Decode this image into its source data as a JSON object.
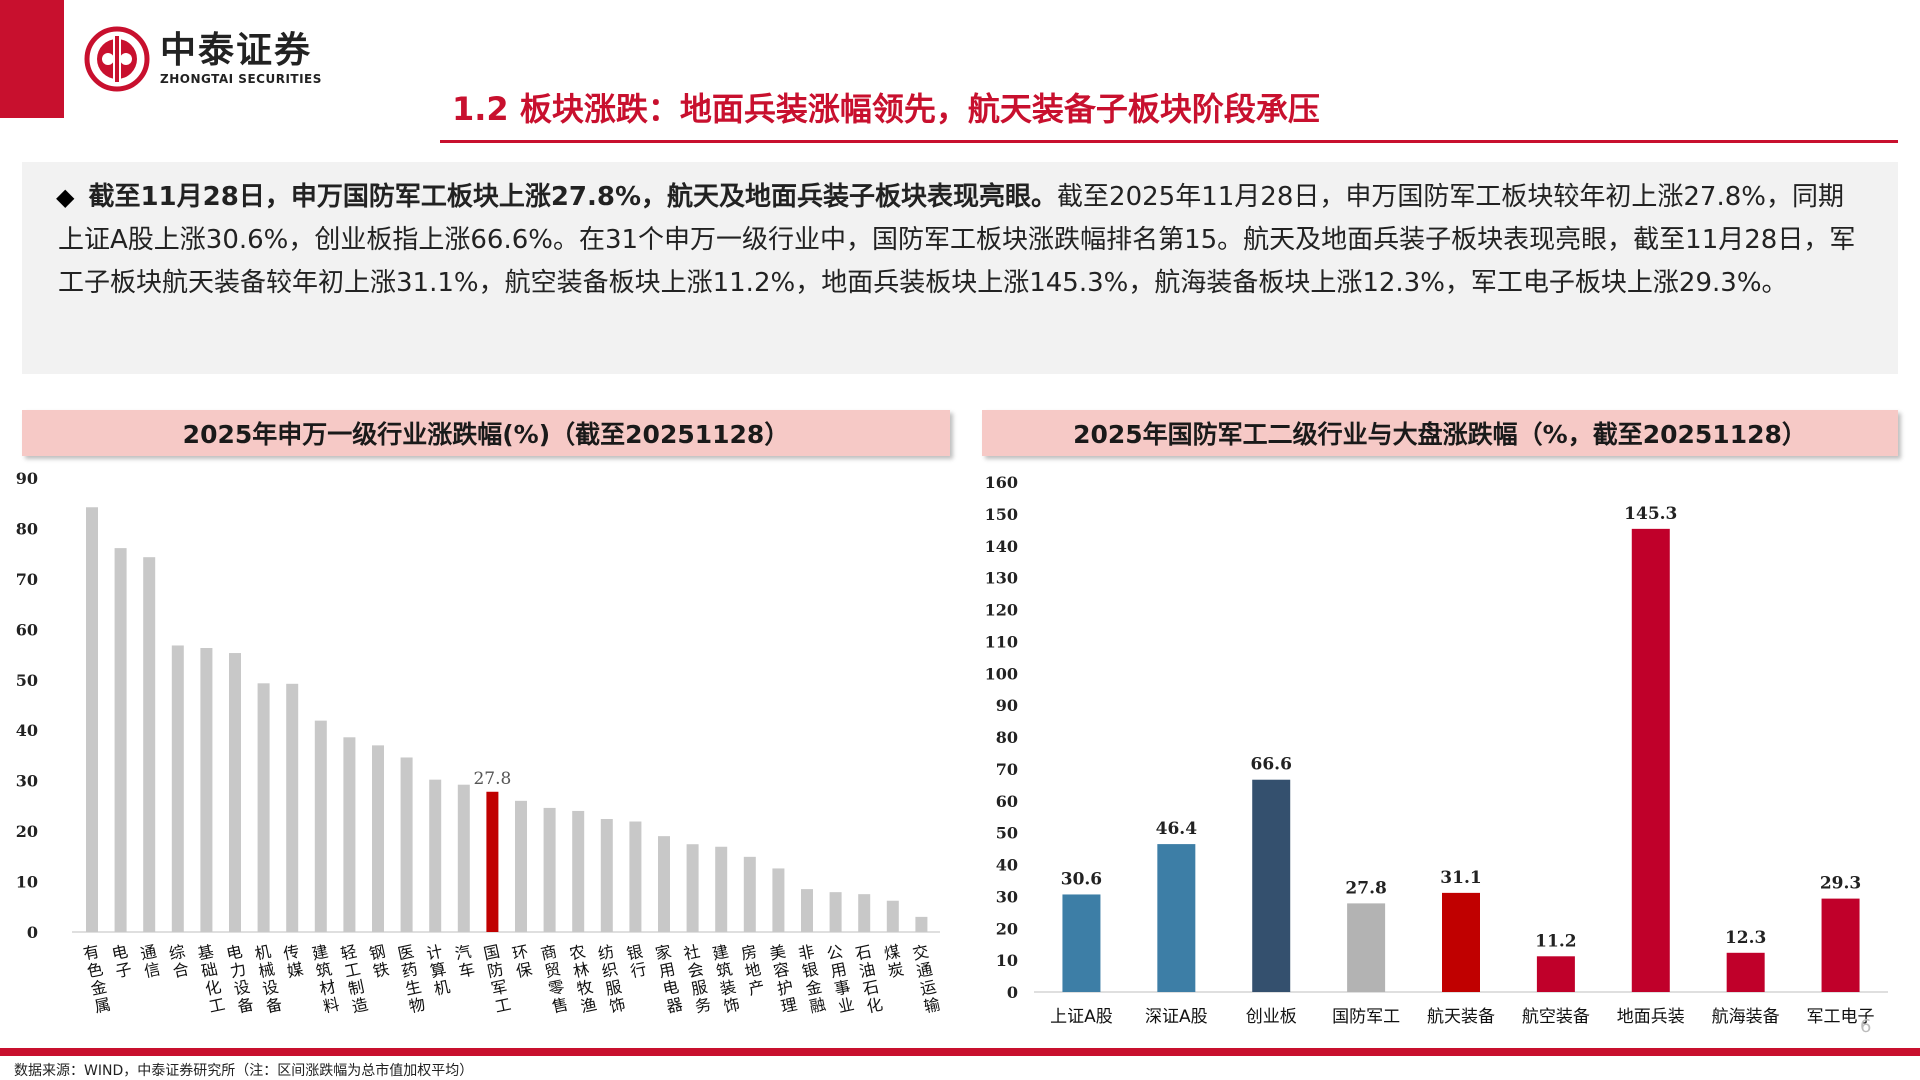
{
  "header": {
    "logo_cn": "中泰证券",
    "logo_en": "ZHONGTAI SECURITIES",
    "title": "1.2 板块涨跌：地面兵装涨幅领先，航天装备子板块阶段承压",
    "accent_color": "#c8102e"
  },
  "summary": {
    "bold_text": "截至11月28日，申万国防军工板块上涨27.8%，航天及地面兵装子板块表现亮眼。",
    "body_text": "截至2025年11月28日，申万国防军工板块较年初上涨27.8%，同期上证A股上涨30.6%，创业板指上涨66.6%。在31个申万一级行业中，国防军工板块涨跌幅排名第15。航天及地面兵装子板块表现亮眼，截至11月28日，军工子板块航天装备较年初上涨31.1%，航空装备板块上涨11.2%，地面兵装板块上涨145.3%，航海装备板块上涨12.3%，军工电子板块上涨29.3%。"
  },
  "footer": {
    "source": "数据来源：WIND，中泰证券研究所（注：区间涨跌幅为总市值加权平均）",
    "page_number": "6"
  },
  "chart_data": [
    {
      "type": "bar",
      "title": "2025年申万一级行业涨跌幅(%)（截至20251128）",
      "categories": [
        "有色金属",
        "电子",
        "通信",
        "综合",
        "基础化工",
        "电力设备",
        "机械设备",
        "传媒",
        "建筑材料",
        "轻工制造",
        "钢铁",
        "医药生物",
        "计算机",
        "汽车",
        "国防军工",
        "环保",
        "商贸零售",
        "农林牧渔",
        "纺织服饰",
        "银行",
        "家用电器",
        "社会服务",
        "建筑装饰",
        "房地产",
        "美容护理",
        "非银金融",
        "公用事业",
        "石油石化",
        "煤炭",
        "交通运输"
      ],
      "values": [
        84.2,
        76.1,
        74.3,
        56.8,
        56.3,
        55.3,
        49.3,
        49.2,
        41.9,
        38.6,
        37.0,
        34.6,
        30.2,
        29.2,
        27.8,
        26.0,
        24.6,
        24.0,
        22.4,
        21.9,
        19.0,
        17.4,
        16.9,
        14.9,
        12.6,
        8.5,
        7.9,
        7.5,
        6.2,
        3.0
      ],
      "highlight": "国防军工",
      "highlight_label": "27.8",
      "ylim": [
        0,
        90
      ],
      "yticks": [
        0,
        10,
        20,
        30,
        40,
        50,
        60,
        70,
        80,
        90
      ],
      "colors": {
        "default": "#c8c8c8",
        "highlight": "#c00000"
      },
      "grid": false
    },
    {
      "type": "bar",
      "title": "2025年国防军工二级行业与大盘涨跌幅（%，截至20251128）",
      "categories": [
        "上证A股",
        "深证A股",
        "创业板",
        "国防军工",
        "航天装备",
        "航空装备",
        "地面兵装",
        "航海装备",
        "军工电子"
      ],
      "values": [
        30.6,
        46.4,
        66.6,
        27.8,
        31.1,
        11.2,
        145.3,
        12.3,
        29.3
      ],
      "labels": [
        "30.6",
        "46.4",
        "66.6",
        "27.8",
        "31.1",
        "11.2",
        "145.3",
        "12.3",
        "29.3"
      ],
      "colors": [
        "#3d7ea6",
        "#3d7ea6",
        "#34506e",
        "#b3b3b3",
        "#c00000",
        "#c0002a",
        "#c0002a",
        "#c0002a",
        "#c0002a"
      ],
      "ylim": [
        0,
        160
      ],
      "yticks": [
        0,
        10,
        20,
        30,
        40,
        50,
        60,
        70,
        80,
        90,
        100,
        110,
        120,
        130,
        140,
        150,
        160
      ],
      "grid": false
    }
  ]
}
